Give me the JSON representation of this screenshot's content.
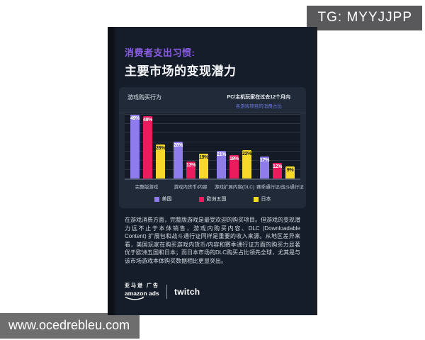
{
  "overlay": {
    "tg_badge": "TG: MYYJJPP",
    "watermark": "www.ocedrebleu.com",
    "badge_color": "#59595b",
    "watermark_color": "#6e6e6e"
  },
  "poster": {
    "title_accent": "消费者支出习惯:",
    "title_main": "主要市场的变现潜力",
    "accent_color": "#8a5ce4",
    "card_color": "#161d2a",
    "paragraph": "在游戏消费方面，完整版游戏是最受欢迎的购买项目。但游戏的变现潜力远不止于本体销售，游戏内购买内容、DLC (Downloadable Content) 扩展包和战斗通行证同样是重要的收入来源。从地区差异来看，美国玩家在购买游戏内货币/内容和赛季通行证方面的购买力显著优于欧洲五国和日本；而日本市场的DLC购买占比领先全球，尤其是与该市场游戏本体购买数据相比更显突出。",
    "footer": {
      "amazon_cn": "亚马逊 广告",
      "amazon_en": "amazon ads",
      "twitch": "twitch"
    },
    "icons": {
      "amazon_smile": "curved-smile-arrow"
    }
  },
  "chart_data": {
    "type": "bar",
    "title": "游戏购买行为",
    "subtitle_line1": "PC/主机玩家在过去12个月内",
    "subtitle_line2": "各游戏项目的消费占比",
    "categories": [
      "完整版游戏",
      "游戏内货币/内容",
      "游戏扩展内容(DLC)",
      "赛季通行证/战斗通行证"
    ],
    "series": [
      {
        "name": "美国",
        "color": "#8f7cec",
        "label_color": "#ffffff",
        "values": [
          49,
          28,
          21,
          17
        ]
      },
      {
        "name": "欧洲五国",
        "color": "#ea1c5d",
        "label_color": "#ffffff",
        "values": [
          48,
          13,
          18,
          12
        ]
      },
      {
        "name": "日本",
        "color": "#f8d82a",
        "label_color": "#1c2128",
        "values": [
          26,
          19,
          22,
          9
        ]
      }
    ],
    "value_suffix": "%",
    "ylim": [
      0,
      50
    ],
    "grid": true,
    "legend_position": "bottom"
  }
}
